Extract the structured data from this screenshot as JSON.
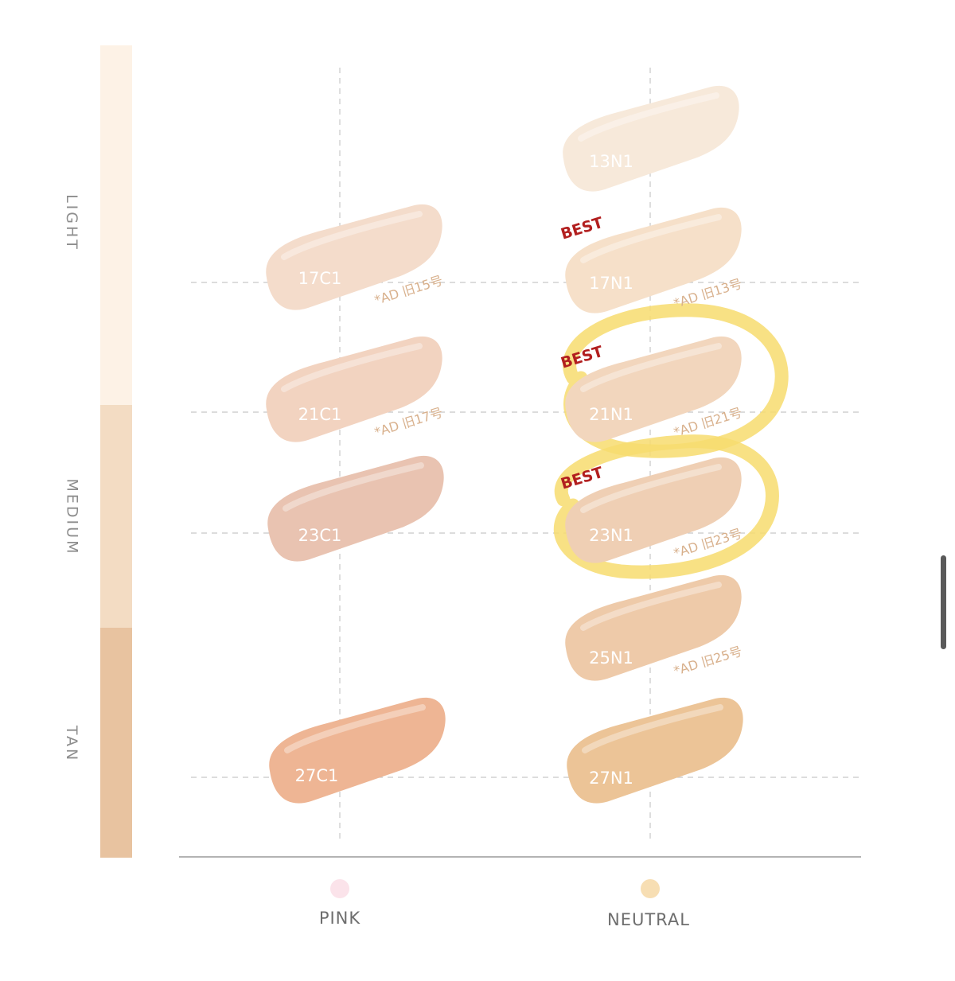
{
  "bands": [
    {
      "label": "LIGHT",
      "color": "#fdf2e6"
    },
    {
      "label": "MEDIUM",
      "color": "#f3dcc3"
    },
    {
      "label": "TAN",
      "color": "#e8c3a0"
    }
  ],
  "columns": [
    {
      "label": "PINK",
      "dot_color": "#fbe3ea"
    },
    {
      "label": "NEUTRAL",
      "dot_color": "#f7deb3"
    }
  ],
  "swatches": [
    {
      "id": "17c1",
      "label": "17C1",
      "note": "*AD 旧15号",
      "color": "#f4dccb",
      "best": ""
    },
    {
      "id": "21c1",
      "label": "21C1",
      "note": "*AD 旧17号",
      "color": "#f2d3c0",
      "best": ""
    },
    {
      "id": "23c1",
      "label": "23C1",
      "note": "",
      "color": "#e9c3b1",
      "best": ""
    },
    {
      "id": "27c1",
      "label": "27C1",
      "note": "",
      "color": "#eeb594",
      "best": ""
    },
    {
      "id": "13n1",
      "label": "13N1",
      "note": "",
      "color": "#f7e9da",
      "best": ""
    },
    {
      "id": "17n1",
      "label": "17N1",
      "note": "*AD 旧13号",
      "color": "#f6e0c9",
      "best": "BEST"
    },
    {
      "id": "21n1",
      "label": "21N1",
      "note": "*AD 旧21号",
      "color": "#f2d6bd",
      "best": "BEST"
    },
    {
      "id": "23n1",
      "label": "23N1",
      "note": "*AD 旧23号",
      "color": "#efcfb4",
      "best": "BEST"
    },
    {
      "id": "25n1",
      "label": "25N1",
      "note": "*AD 旧25号",
      "color": "#eecaa9",
      "best": ""
    },
    {
      "id": "27n1",
      "label": "27N1",
      "note": "",
      "color": "#ecc497",
      "best": ""
    }
  ],
  "colors": {
    "best_text": "#b21f1f",
    "highlight": "#f7dc6f",
    "grid": "#c8c8c8",
    "note_text": "#d8b08c"
  }
}
